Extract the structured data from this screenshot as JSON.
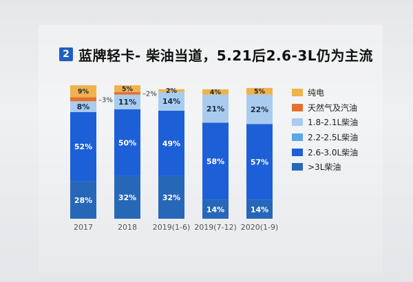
{
  "title": {
    "number": "2",
    "text": "蓝牌轻卡- 柴油当道，5.21后2.6-3L仍为主流"
  },
  "colors": {
    "electric": "#f0b24a",
    "gas": "#e5702e",
    "d18_21": "#a9ccee",
    "d22_25": "#5aa7e8",
    "d26_30": "#1d5fd6",
    "d3plus": "#2767b8"
  },
  "chart_data": {
    "type": "bar",
    "stacked": true,
    "normalized": true,
    "categories": [
      "2017",
      "2018",
      "2019(1-6)",
      "2019(7-12)",
      "2020(1-9)"
    ],
    "series": [
      {
        "name": ">3L柴油",
        "key": "d3plus",
        "values": [
          28,
          32,
          32,
          14,
          14
        ],
        "labels": [
          "28%",
          "32%",
          "32%",
          "14%",
          "14%"
        ]
      },
      {
        "name": "2.6-3.0L柴油",
        "key": "d26_30",
        "values": [
          52,
          50,
          49,
          58,
          57
        ],
        "labels": [
          "52%",
          "50%",
          "49%",
          "58%",
          "57%"
        ]
      },
      {
        "name": "2.2-2.5L柴油",
        "key": "d22_25",
        "values": [
          0,
          0,
          0,
          0,
          0
        ],
        "labels": [
          "",
          "",
          "",
          "",
          ""
        ]
      },
      {
        "name": "1.8-2.1L柴油",
        "key": "d18_21",
        "values": [
          8,
          11,
          14,
          21,
          22
        ],
        "labels": [
          "8%",
          "11%",
          "14%",
          "21%",
          "22%"
        ]
      },
      {
        "name": "天然气及汽油",
        "key": "gas",
        "values": [
          3,
          2,
          0,
          0,
          0
        ],
        "labels": [
          "3%",
          "2%",
          "",
          "",
          ""
        ]
      },
      {
        "name": "纯电",
        "key": "electric",
        "values": [
          9,
          5,
          2,
          4,
          5
        ],
        "labels": [
          "9%",
          "5%",
          "2%",
          "4%",
          "5%"
        ]
      }
    ],
    "legend": [
      "纯电",
      "天然气及汽油",
      "1.8-2.1L柴油",
      "2.2-2.5L柴油",
      "2.6-3.0L柴油",
      ">3L柴油"
    ],
    "legend_position": "right",
    "ylim": [
      0,
      100
    ],
    "grid": false
  }
}
